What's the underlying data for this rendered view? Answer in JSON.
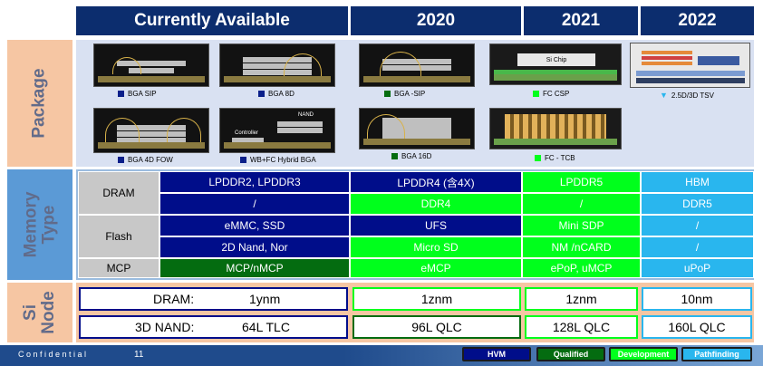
{
  "header": {
    "currently_available": "Currently  Available",
    "y2020": "2020",
    "y2021": "2021",
    "y2022": "2022"
  },
  "sections": {
    "package": "Package",
    "memory_type_1": "Memory",
    "memory_type_2": "Type",
    "si_node_1": "Si",
    "si_node_2": "Node"
  },
  "packages": {
    "bga_sip": "BGA  SIP",
    "bga_8d": "BGA  8D",
    "bga_4d_fow": "BGA  4D  FOW",
    "wb_fc_hybrid": "WB+FC Hybrid BGA",
    "bga_sip_2020": "BGA  -SIP",
    "bga_16d": "BGA  16D",
    "fc_csp": "FC CSP",
    "fc_tcb": "FC - TCB",
    "tsv": "2.5D/3D TSV",
    "si_chip_label": "Si Chip",
    "controller_label": "Controller",
    "nand_label": "NAND"
  },
  "memory": {
    "dram_label": "DRAM",
    "flash_label": "Flash",
    "mcp_label": "MCP",
    "dram_r1": [
      "LPDDR2, LPDDR3",
      "LPDDR4 (含4X)",
      "LPDDR5",
      "HBM"
    ],
    "dram_r2": [
      "/",
      "DDR4",
      "/",
      "DDR5"
    ],
    "flash_r1": [
      "eMMC, SSD",
      "UFS",
      "Mini SDP",
      "/"
    ],
    "flash_r2": [
      "2D Nand, Nor",
      "Micro SD",
      "NM /nCARD",
      "/"
    ],
    "mcp_r1": [
      "MCP/nMCP",
      "eMCP",
      "ePoP, uMCP",
      "uPoP"
    ]
  },
  "si_node": {
    "dram_label": "DRAM:",
    "dram_current": "1ynm",
    "dram_2020": "1znm",
    "dram_2021": "1znm",
    "dram_2022": "10nm",
    "nand_label": "3D NAND:",
    "nand_current": "64L TLC",
    "nand_2020": "96L QLC",
    "nand_2021": "128L QLC",
    "nand_2022": "160L QLC"
  },
  "footer": {
    "confidential": "C o n f i d e n t i a l",
    "page_number": "11"
  },
  "legend": {
    "hvm": "HVM",
    "qualified": "Qualified",
    "development": "Development",
    "pathfinding": "Pathfinding"
  },
  "colors": {
    "hvm": "#000d8a",
    "qualified": "#046c10",
    "development": "#00ff1c",
    "pathfinding": "#29b6ee",
    "header": "#0c2d6e",
    "side_label": "#f6c6a3",
    "memory_side": "#5b9ad6"
  }
}
